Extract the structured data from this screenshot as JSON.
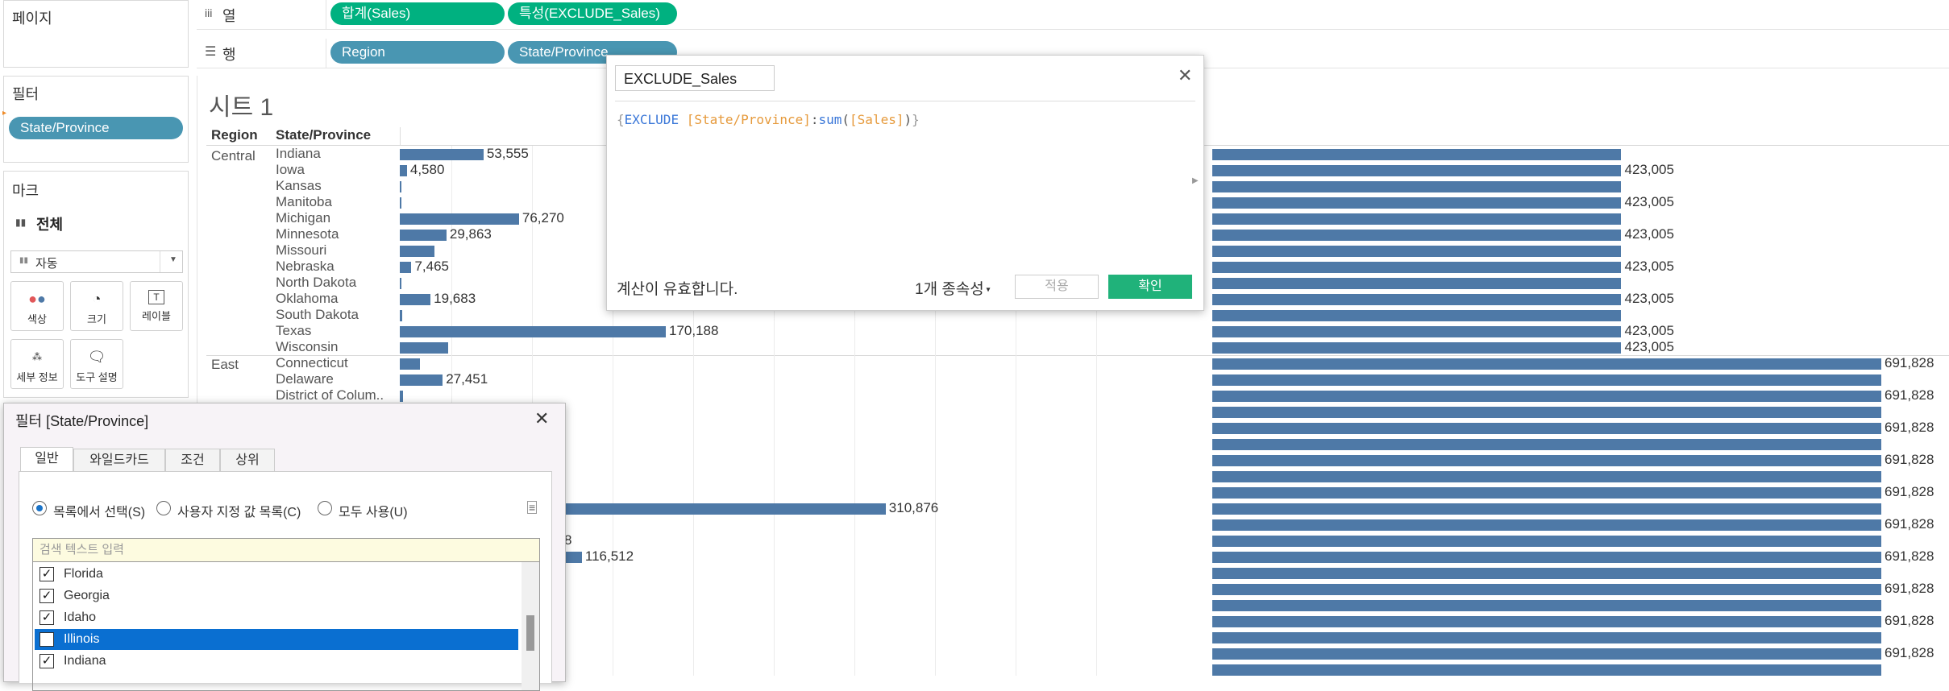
{
  "shelves": {
    "pages_label": "페이지",
    "columns_label": "열",
    "rows_label": "행",
    "column_pills": [
      "합계(Sales)",
      "특성(EXCLUDE_Sales)"
    ],
    "row_pills": [
      "Region",
      "State/Province"
    ]
  },
  "filters_panel": {
    "title": "필터",
    "pill": "State/Province"
  },
  "marks_panel": {
    "title": "마크",
    "all_label": "전체",
    "type_select": "자동",
    "buttons": [
      "색상",
      "크기",
      "레이블",
      "세부 정보",
      "도구 설명"
    ]
  },
  "sheet": {
    "title": "시트 1",
    "headers": {
      "region": "Region",
      "state": "State/Province"
    },
    "regions": [
      "Central",
      "East"
    ]
  },
  "chart_data": {
    "type": "bar",
    "series": [
      {
        "name": "합계(Sales)",
        "categories": [
          "Indiana",
          "Iowa",
          "Kansas",
          "Manitoba",
          "Michigan",
          "Minnesota",
          "Missouri",
          "Nebraska",
          "North Dakota",
          "Oklahoma",
          "South Dakota",
          "Texas",
          "Wisconsin",
          "Connecticut",
          "Delaware",
          "District of Colum.."
        ],
        "values": [
          53555,
          4580,
          1100,
          800,
          76270,
          29863,
          22000,
          7465,
          900,
          19683,
          1300,
          170188,
          31000,
          13000,
          27451,
          2000
        ],
        "labels": [
          "53,555",
          "4,580",
          "",
          "",
          "76,270",
          "29,863",
          "",
          "7,465",
          "",
          "19,683",
          "",
          "170,188",
          "",
          "",
          "27,451",
          ""
        ]
      },
      {
        "name": "특성(EXCLUDE_Sales)",
        "central_value": 423005,
        "central_label": "423,005",
        "east_value": 691828,
        "east_label": "691,828"
      }
    ],
    "partial_rows": [
      {
        "value": 310876,
        "label": "310,876"
      },
      {
        "value": 116512,
        "label": "116,512"
      }
    ]
  },
  "calc_dialog": {
    "name": "EXCLUDE_Sales",
    "formula": {
      "open": "{",
      "kw1": "EXCLUDE",
      "field": "[State/Province]",
      "colon": ":",
      "fn": "sum",
      "paren_open": "(",
      "arg": "[Sales]",
      "paren_close": ")",
      "close": "}"
    },
    "status": "계산이 유효합니다.",
    "dependencies": "1개 종속성",
    "apply_label": "적용",
    "ok_label": "확인"
  },
  "filter_dialog": {
    "title": "필터 [State/Province]",
    "tabs": [
      "일반",
      "와일드카드",
      "조건",
      "상위"
    ],
    "radios": [
      "목록에서 선택(S)",
      "사용자 지정 값 목록(C)",
      "모두 사용(U)"
    ],
    "search_placeholder": "검색 텍스트 입력",
    "items": [
      {
        "label": "Florida",
        "checked": true
      },
      {
        "label": "Georgia",
        "checked": true
      },
      {
        "label": "Idaho",
        "checked": true
      },
      {
        "label": "Illinois",
        "checked": false
      },
      {
        "label": "Indiana",
        "checked": true
      }
    ]
  },
  "colors": {
    "bar": "#4e79a7",
    "green_pill": "#00b180",
    "blue_pill": "#4996b2",
    "selected": "#0a6fd1"
  }
}
